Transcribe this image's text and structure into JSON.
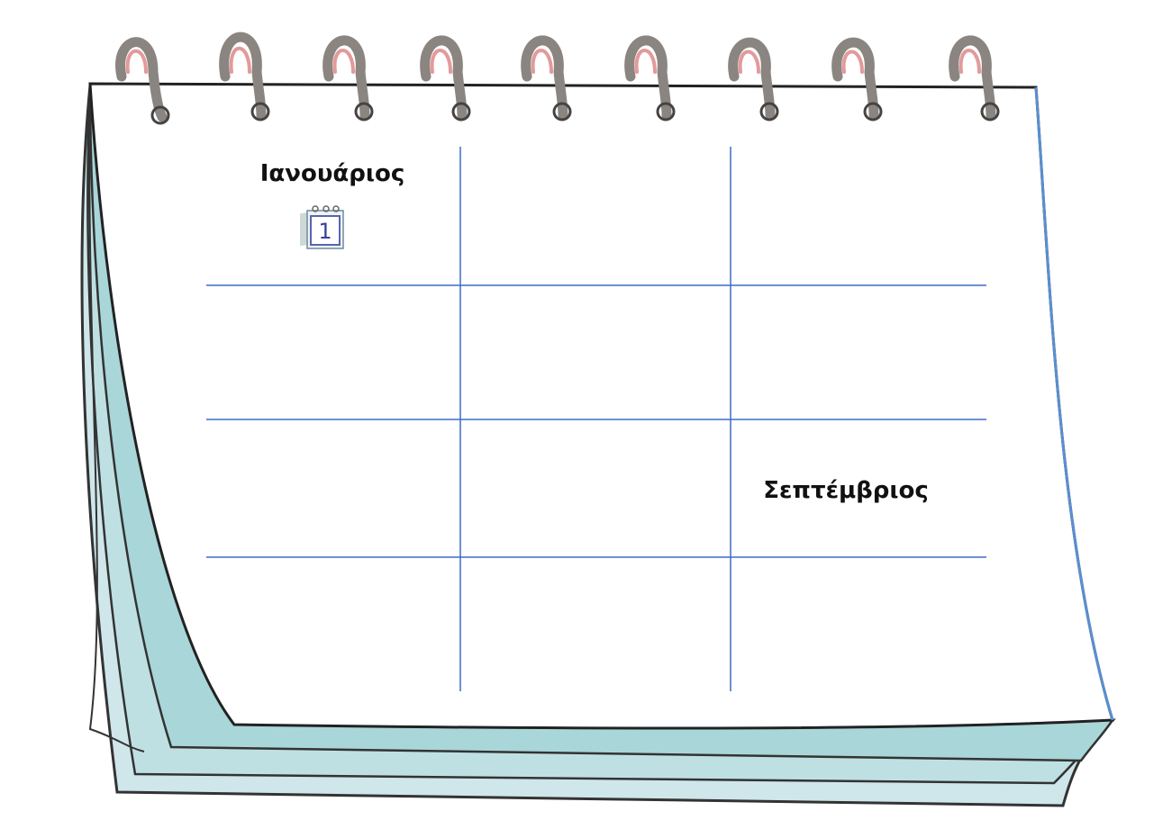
{
  "months": [
    "Ιανουάριος",
    "Σεπτέμβριος"
  ],
  "icon_day": "1"
}
